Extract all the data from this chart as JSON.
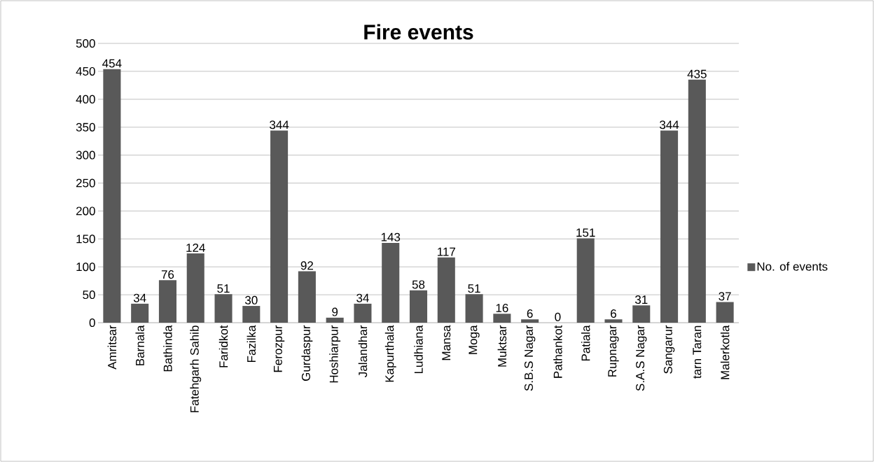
{
  "chart_data": {
    "type": "bar",
    "title": "Fire events",
    "categories": [
      "Amritsar",
      "Barnala",
      "Bathinda",
      "Fatehgarh Sahib",
      "Faridkot",
      "Fazilka",
      "Ferozpur",
      "Gurdaspur",
      "Hoshiarpur",
      "Jalandhar",
      "Kapurthala",
      "Ludhiana",
      "Mansa",
      "Moga",
      "Muktsar",
      "S.B.S Nagar",
      "Pathankot",
      "Patiala",
      "Rupnagar",
      "S.A.S Nagar",
      "Sangarur",
      "tarn Taran",
      "Malerkotla"
    ],
    "series": [
      {
        "name": "No. of events",
        "color": "#595959",
        "values": [
          454,
          34,
          76,
          124,
          51,
          30,
          344,
          92,
          9,
          34,
          143,
          58,
          117,
          51,
          16,
          6,
          0,
          151,
          6,
          31,
          344,
          435,
          37
        ]
      }
    ],
    "ylim": [
      0,
      500
    ],
    "yticks": [
      0,
      50,
      100,
      150,
      200,
      250,
      300,
      350,
      400,
      450,
      500
    ],
    "grid": "y",
    "legend": "right",
    "data_labels": true
  }
}
